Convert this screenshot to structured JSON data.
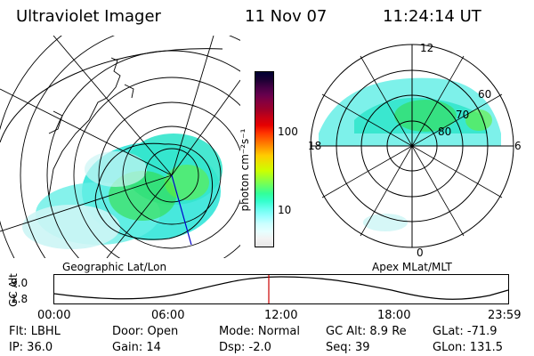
{
  "header": {
    "instrument": "Ultraviolet Imager",
    "date": "11 Nov 07",
    "time": "11:24:14 UT"
  },
  "colorbar": {
    "unit_label": "photon cm⁻²s⁻¹",
    "ticks": [
      "100",
      "10"
    ],
    "colors": [
      "#000033",
      "#1a0033",
      "#440044",
      "#66004d",
      "#88003d",
      "#a00028",
      "#c80014",
      "#e60000",
      "#ff3300",
      "#ff6600",
      "#ff9900",
      "#ffcc00",
      "#e6e600",
      "#ccff00",
      "#99ff33",
      "#66ff66",
      "#33ff99",
      "#33ffcc",
      "#66ffee",
      "#99ffff",
      "#ccffff",
      "#e6ffff",
      "#f2f2f2",
      "#e6e6e6"
    ]
  },
  "left_map": {
    "label": "Geographic Lat/Lon"
  },
  "right_map": {
    "label": "Apex MLat/MLT",
    "mlt_labels": {
      "top": "12",
      "left": "18",
      "right": "6",
      "bottom": "0"
    },
    "lat_labels": [
      "60",
      "70",
      "80"
    ]
  },
  "altitude_plot": {
    "ylabel": "GC Alt",
    "yticks": [
      "9.0",
      "1.8"
    ],
    "xticks": [
      "00:00",
      "06:00",
      "12:00",
      "18:00",
      "23:59"
    ],
    "marker_time": "11:24:14",
    "marker_color": "#cc0000"
  },
  "status": {
    "flt": "Flt: LBHL",
    "ip": "IP: 36.0",
    "door": "Door: Open",
    "gain": "Gain: 14",
    "mode": "Mode: Normal",
    "dsp": "Dsp:    -2.0",
    "gc_alt": "GC Alt: 8.9 Re",
    "seq": "Seq: 39",
    "glat": "GLat: -71.9",
    "glon": "GLon: 131.5"
  }
}
